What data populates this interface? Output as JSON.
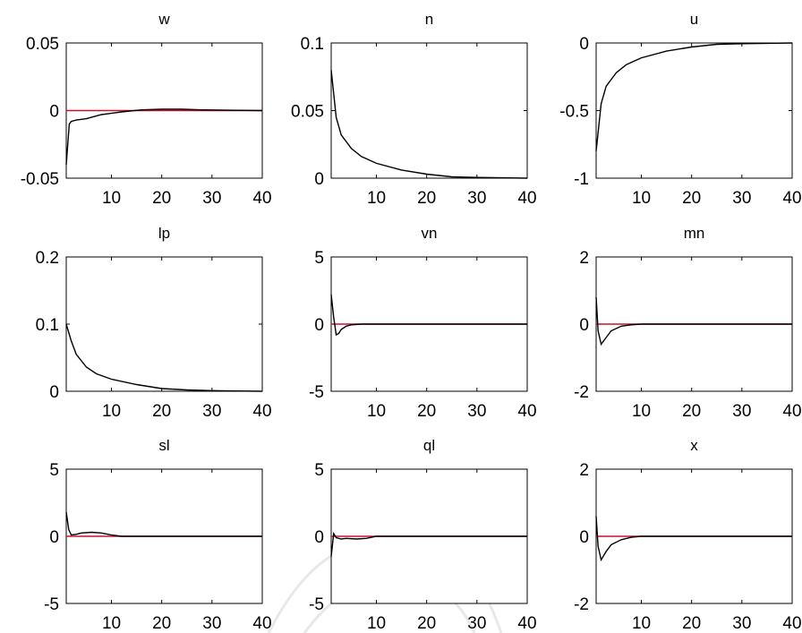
{
  "colors": {
    "response": "#000000",
    "zero_line": "#c8102e",
    "frame": "#000000"
  },
  "chart_data": [
    {
      "type": "line",
      "title": "w",
      "xlim": [
        1,
        40
      ],
      "ylim": [
        -0.05,
        0.05
      ],
      "xticks": [
        10,
        20,
        30,
        40
      ],
      "yticks": [
        -0.05,
        0,
        0.05
      ],
      "xtick_labels": [
        "10",
        "20",
        "30",
        "40"
      ],
      "ytick_labels": [
        "-0.05",
        "0",
        "0.05"
      ],
      "series": [
        {
          "x": [
            1,
            1.6,
            2,
            3,
            5,
            8,
            12,
            16,
            20,
            24,
            28,
            40
          ],
          "values": [
            -0.04,
            -0.01,
            -0.008,
            -0.007,
            -0.006,
            -0.003,
            -0.001,
            0.0005,
            0.001,
            0.001,
            0.0005,
            0
          ]
        }
      ]
    },
    {
      "type": "line",
      "title": "n",
      "xlim": [
        1,
        40
      ],
      "ylim": [
        0,
        0.1
      ],
      "xticks": [
        10,
        20,
        30,
        40
      ],
      "yticks": [
        0,
        0.05,
        0.1
      ],
      "xtick_labels": [
        "10",
        "20",
        "30",
        "40"
      ],
      "ytick_labels": [
        "0",
        "0.05",
        "0.1"
      ],
      "series": [
        {
          "x": [
            1,
            2,
            3,
            5,
            7,
            10,
            15,
            20,
            25,
            30,
            40
          ],
          "values": [
            0.08,
            0.045,
            0.032,
            0.022,
            0.016,
            0.011,
            0.006,
            0.003,
            0.001,
            0.0005,
            0
          ]
        }
      ]
    },
    {
      "type": "line",
      "title": "u",
      "xlim": [
        1,
        40
      ],
      "ylim": [
        -1,
        0
      ],
      "xticks": [
        10,
        20,
        30,
        40
      ],
      "yticks": [
        -1,
        -0.5,
        0
      ],
      "xtick_labels": [
        "10",
        "20",
        "30",
        "40"
      ],
      "ytick_labels": [
        "-1",
        "-0.5",
        "0"
      ],
      "series": [
        {
          "x": [
            1,
            2,
            3,
            5,
            7,
            10,
            15,
            20,
            25,
            30,
            40
          ],
          "values": [
            -0.8,
            -0.45,
            -0.32,
            -0.22,
            -0.16,
            -0.11,
            -0.06,
            -0.03,
            -0.01,
            -0.005,
            0
          ]
        }
      ]
    },
    {
      "type": "line",
      "title": "lp",
      "xlim": [
        1,
        40
      ],
      "ylim": [
        0,
        0.2
      ],
      "xticks": [
        10,
        20,
        30,
        40
      ],
      "yticks": [
        0,
        0.1,
        0.2
      ],
      "xtick_labels": [
        "10",
        "20",
        "30",
        "40"
      ],
      "ytick_labels": [
        "0",
        "0.1",
        "0.2"
      ],
      "series": [
        {
          "x": [
            1,
            2,
            3,
            5,
            7,
            10,
            15,
            20,
            25,
            30,
            40
          ],
          "values": [
            0.1,
            0.075,
            0.055,
            0.036,
            0.026,
            0.018,
            0.01,
            0.004,
            0.002,
            0.001,
            0
          ]
        }
      ]
    },
    {
      "type": "line",
      "title": "vn",
      "xlim": [
        1,
        40
      ],
      "ylim": [
        -5,
        5
      ],
      "xticks": [
        10,
        20,
        30,
        40
      ],
      "yticks": [
        -5,
        0,
        5
      ],
      "xtick_labels": [
        "10",
        "20",
        "30",
        "40"
      ],
      "ytick_labels": [
        "-5",
        "0",
        "5"
      ],
      "series": [
        {
          "x": [
            1,
            1.5,
            2,
            2.5,
            3,
            4,
            5,
            7,
            10,
            40
          ],
          "values": [
            2.2,
            0.5,
            -0.8,
            -0.7,
            -0.4,
            -0.15,
            -0.05,
            0,
            0,
            0
          ]
        }
      ]
    },
    {
      "type": "line",
      "title": "mn",
      "xlim": [
        1,
        40
      ],
      "ylim": [
        -2,
        2
      ],
      "xticks": [
        10,
        20,
        30,
        40
      ],
      "yticks": [
        -2,
        0,
        2
      ],
      "xtick_labels": [
        "10",
        "20",
        "30",
        "40"
      ],
      "ytick_labels": [
        "-2",
        "0",
        "2"
      ],
      "series": [
        {
          "x": [
            1,
            1.4,
            2,
            3,
            4,
            6,
            8,
            10,
            40
          ],
          "values": [
            0.8,
            -0.2,
            -0.6,
            -0.4,
            -0.2,
            -0.06,
            -0.02,
            0,
            0
          ]
        }
      ]
    },
    {
      "type": "line",
      "title": "sl",
      "xlim": [
        1,
        40
      ],
      "ylim": [
        -5,
        5
      ],
      "xticks": [
        10,
        20,
        30,
        40
      ],
      "yticks": [
        -5,
        0,
        5
      ],
      "xtick_labels": [
        "10",
        "20",
        "30",
        "40"
      ],
      "ytick_labels": [
        "-5",
        "0",
        "5"
      ],
      "series": [
        {
          "x": [
            1,
            1.5,
            2,
            3,
            4,
            6,
            8,
            10,
            12,
            40
          ],
          "values": [
            1.8,
            0.5,
            0.1,
            0.15,
            0.25,
            0.3,
            0.25,
            0.1,
            0,
            0
          ]
        }
      ]
    },
    {
      "type": "line",
      "title": "ql",
      "xlim": [
        1,
        40
      ],
      "ylim": [
        -5,
        5
      ],
      "xticks": [
        10,
        20,
        30,
        40
      ],
      "yticks": [
        -5,
        0,
        5
      ],
      "xtick_labels": [
        "10",
        "20",
        "30",
        "40"
      ],
      "ytick_labels": [
        "-5",
        "0",
        "5"
      ],
      "series": [
        {
          "x": [
            1,
            1.5,
            2,
            3,
            4,
            6,
            8,
            10,
            40
          ],
          "values": [
            -1.5,
            0.2,
            -0.1,
            -0.2,
            -0.15,
            -0.2,
            -0.15,
            0,
            0
          ]
        }
      ]
    },
    {
      "type": "line",
      "title": "x",
      "xlim": [
        1,
        40
      ],
      "ylim": [
        -2,
        2
      ],
      "xticks": [
        10,
        20,
        30,
        40
      ],
      "yticks": [
        -2,
        0,
        2
      ],
      "xtick_labels": [
        "10",
        "20",
        "30",
        "40"
      ],
      "ytick_labels": [
        "-2",
        "0",
        "2"
      ],
      "series": [
        {
          "x": [
            1,
            1.4,
            2,
            3,
            4,
            6,
            8,
            10,
            40
          ],
          "values": [
            0.6,
            -0.3,
            -0.7,
            -0.45,
            -0.25,
            -0.1,
            -0.03,
            0,
            0
          ]
        }
      ]
    }
  ]
}
